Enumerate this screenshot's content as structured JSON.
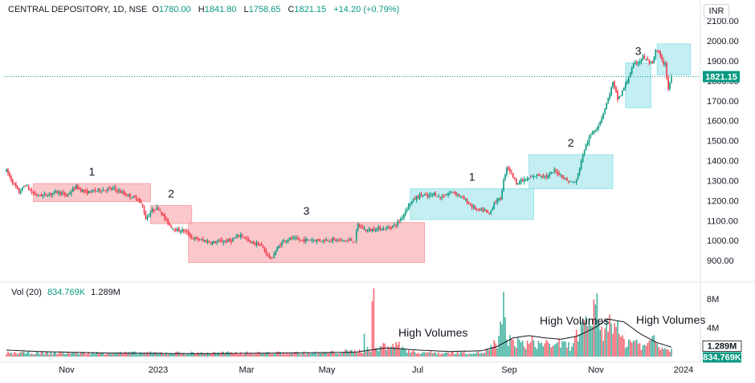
{
  "header": {
    "symbol": "CENTRAL DEPOSITORY, 1D, NSE",
    "open_label": "O",
    "open": "1780.00",
    "high_label": "H",
    "high": "1841.80",
    "low_label": "L",
    "low": "1758.65",
    "close_label": "C",
    "close": "1821.15",
    "change": "+14.20 (+0.79%)"
  },
  "currency": "INR",
  "volume_header": {
    "label": "Vol (20)",
    "value1": "834.769K",
    "value2": "1.289M"
  },
  "colors": {
    "up": "#089981",
    "down": "#f23645",
    "ma": "#131722"
  },
  "chart_data": {
    "type": "candlestick",
    "title": "CENTRAL DEPOSITORY, 1D, NSE",
    "y_ticks": [
      "2100.00",
      "2000.00",
      "1900.00",
      "1800.00",
      "1700.00",
      "1600.00",
      "1500.00",
      "1400.00",
      "1300.00",
      "1200.00",
      "1100.00",
      "1000.00",
      "900.00"
    ],
    "y_tick_values": [
      2100,
      2000,
      1900,
      1800,
      1700,
      1600,
      1500,
      1400,
      1300,
      1200,
      1100,
      1000,
      900
    ],
    "ylim": [
      820,
      2165
    ],
    "x_ticks": [
      "Nov",
      "2023",
      "Mar",
      "May",
      "Jul",
      "Sep",
      "Nov",
      "2024"
    ],
    "last_price_label": "1821.15",
    "last_price": 1821.15,
    "volume_ticks": [
      "8M",
      "4M"
    ],
    "volume_tick_values": [
      8,
      4
    ],
    "volume_ylim": [
      0,
      10
    ],
    "volume_labels": [
      "1.289M",
      "834.769K"
    ],
    "volume_label_values": [
      1.289,
      0.835
    ],
    "path": [
      [
        0,
        1350
      ],
      [
        4,
        1290
      ],
      [
        8,
        1240
      ],
      [
        12,
        1280
      ],
      [
        16,
        1240
      ],
      [
        20,
        1225
      ],
      [
        26,
        1230
      ],
      [
        32,
        1245
      ],
      [
        38,
        1225
      ],
      [
        44,
        1270
      ],
      [
        50,
        1240
      ],
      [
        56,
        1250
      ],
      [
        62,
        1255
      ],
      [
        68,
        1260
      ],
      [
        74,
        1235
      ],
      [
        80,
        1215
      ],
      [
        83,
        1210
      ],
      [
        86,
        1170
      ],
      [
        88,
        1110
      ],
      [
        92,
        1150
      ],
      [
        96,
        1165
      ],
      [
        100,
        1110
      ],
      [
        104,
        1070
      ],
      [
        108,
        1050
      ],
      [
        112,
        1050
      ],
      [
        118,
        1010
      ],
      [
        124,
        1000
      ],
      [
        130,
        990
      ],
      [
        136,
        995
      ],
      [
        142,
        1000
      ],
      [
        148,
        1030
      ],
      [
        154,
        990
      ],
      [
        160,
        980
      ],
      [
        164,
        940
      ],
      [
        167,
        905
      ],
      [
        171,
        960
      ],
      [
        175,
        1000
      ],
      [
        180,
        1010
      ],
      [
        186,
        1000
      ],
      [
        192,
        1005
      ],
      [
        198,
        1000
      ],
      [
        204,
        1005
      ],
      [
        210,
        1000
      ],
      [
        216,
        1000
      ],
      [
        220,
        1000
      ],
      [
        222,
        1080
      ],
      [
        224,
        1065
      ],
      [
        228,
        1050
      ],
      [
        234,
        1060
      ],
      [
        240,
        1060
      ],
      [
        246,
        1080
      ],
      [
        250,
        1120
      ],
      [
        254,
        1180
      ],
      [
        258,
        1210
      ],
      [
        262,
        1230
      ],
      [
        266,
        1220
      ],
      [
        270,
        1235
      ],
      [
        274,
        1215
      ],
      [
        278,
        1230
      ],
      [
        282,
        1245
      ],
      [
        286,
        1225
      ],
      [
        290,
        1200
      ],
      [
        294,
        1170
      ],
      [
        298,
        1150
      ],
      [
        302,
        1150
      ],
      [
        305,
        1130
      ],
      [
        308,
        1190
      ],
      [
        312,
        1210
      ],
      [
        314,
        1300
      ],
      [
        316,
        1370
      ],
      [
        318,
        1350
      ],
      [
        322,
        1290
      ],
      [
        326,
        1300
      ],
      [
        330,
        1310
      ],
      [
        336,
        1330
      ],
      [
        342,
        1320
      ],
      [
        346,
        1350
      ],
      [
        350,
        1330
      ],
      [
        354,
        1300
      ],
      [
        358,
        1290
      ],
      [
        360,
        1300
      ],
      [
        363,
        1400
      ],
      [
        366,
        1480
      ],
      [
        370,
        1540
      ],
      [
        374,
        1580
      ],
      [
        377,
        1640
      ],
      [
        380,
        1710
      ],
      [
        383,
        1790
      ],
      [
        386,
        1710
      ],
      [
        388,
        1730
      ],
      [
        392,
        1800
      ],
      [
        396,
        1880
      ],
      [
        400,
        1900
      ],
      [
        402,
        1920
      ],
      [
        405,
        1900
      ],
      [
        408,
        1880
      ],
      [
        410,
        1950
      ],
      [
        412,
        1940
      ],
      [
        414,
        1900
      ],
      [
        416,
        1880
      ],
      [
        418,
        1760
      ],
      [
        420,
        1821
      ]
    ],
    "volume_path": [
      [
        0,
        0.5
      ],
      [
        80,
        0.5
      ],
      [
        200,
        0.5
      ],
      [
        225,
        0.8
      ],
      [
        226,
        3.0
      ],
      [
        227,
        1.0
      ],
      [
        230,
        1.1
      ],
      [
        232,
        9.6
      ],
      [
        233,
        1.0
      ],
      [
        236,
        1.2
      ],
      [
        242,
        1.8
      ],
      [
        248,
        1.5
      ],
      [
        256,
        0.6
      ],
      [
        265,
        0.6
      ],
      [
        275,
        0.5
      ],
      [
        290,
        0.6
      ],
      [
        300,
        0.5
      ],
      [
        305,
        1.0
      ],
      [
        308,
        1.8
      ],
      [
        310,
        1.0
      ],
      [
        312,
        3.5
      ],
      [
        313,
        4.5
      ],
      [
        314,
        9.3
      ],
      [
        316,
        2.0
      ],
      [
        320,
        2.3
      ],
      [
        326,
        1.6
      ],
      [
        332,
        2.0
      ],
      [
        338,
        1.6
      ],
      [
        342,
        2.2
      ],
      [
        346,
        1.2
      ],
      [
        350,
        1.8
      ],
      [
        356,
        1.4
      ],
      [
        360,
        2.8
      ],
      [
        364,
        3.8
      ],
      [
        368,
        4.0
      ],
      [
        372,
        8.0
      ],
      [
        374,
        6.0
      ],
      [
        376,
        3.0
      ],
      [
        378,
        4.5
      ],
      [
        380,
        4.2
      ],
      [
        382,
        6.5
      ],
      [
        386,
        3.4
      ],
      [
        390,
        2.0
      ],
      [
        396,
        2.3
      ],
      [
        400,
        1.8
      ],
      [
        404,
        1.2
      ],
      [
        408,
        3.0
      ],
      [
        412,
        1.6
      ],
      [
        416,
        1.2
      ],
      [
        420,
        0.9
      ]
    ],
    "ma_path": [
      [
        0,
        0.9
      ],
      [
        20,
        0.7
      ],
      [
        60,
        0.5
      ],
      [
        120,
        0.4
      ],
      [
        180,
        0.5
      ],
      [
        220,
        0.6
      ],
      [
        240,
        1.2
      ],
      [
        260,
        0.9
      ],
      [
        280,
        0.7
      ],
      [
        300,
        0.8
      ],
      [
        310,
        1.4
      ],
      [
        320,
        2.6
      ],
      [
        330,
        2.9
      ],
      [
        340,
        2.6
      ],
      [
        350,
        2.4
      ],
      [
        360,
        2.8
      ],
      [
        370,
        3.8
      ],
      [
        380,
        5.2
      ],
      [
        390,
        4.8
      ],
      [
        400,
        3.2
      ],
      [
        410,
        2.0
      ],
      [
        420,
        1.3
      ]
    ],
    "boxes": [
      {
        "label": "1",
        "x0": 17,
        "x1": 91,
        "y0": 1195,
        "y1": 1285,
        "color": "#f7a3a8"
      },
      {
        "label": "2",
        "x0": 91,
        "x1": 117,
        "y0": 1085,
        "y1": 1175,
        "color": "#f7a3a8"
      },
      {
        "label": "3",
        "x0": 115,
        "x1": 264,
        "y0": 890,
        "y1": 1090,
        "color": "#f7a3a8"
      },
      {
        "label": "1",
        "x0": 255,
        "x1": 333,
        "y0": 1105,
        "y1": 1260,
        "color": "#9be3ea"
      },
      {
        "label": "2",
        "x0": 330,
        "x1": 383,
        "y0": 1260,
        "y1": 1430,
        "color": "#9be3ea"
      },
      {
        "label": "3",
        "x0": 391,
        "x1": 407,
        "y0": 1665,
        "y1": 1890,
        "color": "#9be3ea"
      },
      {
        "label": "",
        "x0": 411,
        "x1": 432,
        "y0": 1830,
        "y1": 1985,
        "color": "#9be3ea"
      }
    ],
    "annotations": [
      "High Volumes",
      "High Volumes",
      "High Volumes"
    ]
  }
}
